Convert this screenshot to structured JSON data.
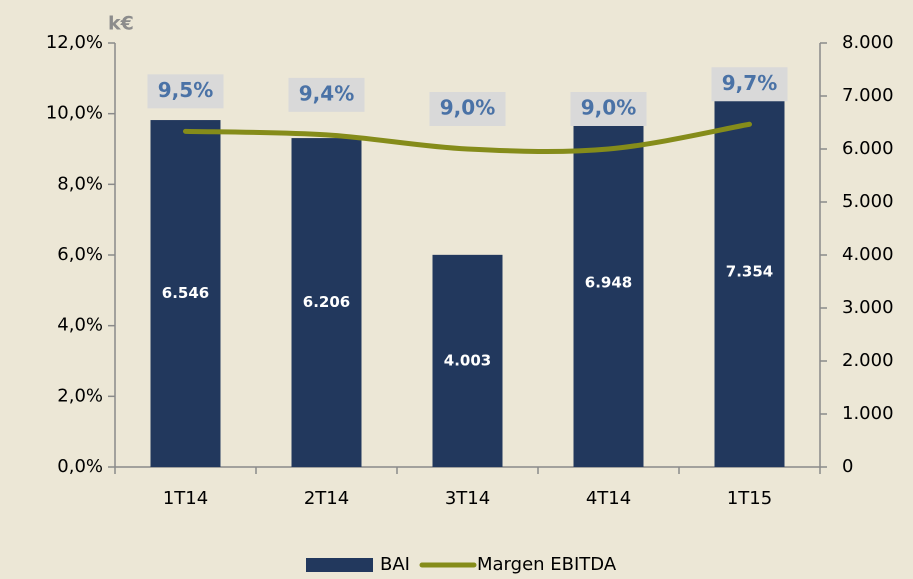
{
  "chart_data": {
    "type": "bar-line",
    "unit_label": "k€",
    "categories": [
      "1T14",
      "2T14",
      "3T14",
      "4T14",
      "1T15"
    ],
    "series": [
      {
        "name": "BAI",
        "type": "bar",
        "axis": "y2",
        "color": "#22385d",
        "values": [
          6546,
          6206,
          4003,
          6948,
          7354
        ],
        "value_labels": [
          "6.546",
          "6.206",
          "4.003",
          "6.948",
          "7.354"
        ]
      },
      {
        "name": "Margen EBITDA",
        "type": "line",
        "axis": "y",
        "color": "#858c1a",
        "values": [
          9.5,
          9.4,
          9.0,
          9.0,
          9.7
        ],
        "value_labels": [
          "9,5%",
          "9,4%",
          "9,0%",
          "9,0%",
          "9,7%"
        ]
      }
    ],
    "ylim": [
      0,
      12
    ],
    "yticks": [
      {
        "value": 0,
        "label": "0,0%"
      },
      {
        "value": 2,
        "label": "2,0%"
      },
      {
        "value": 4,
        "label": "4,0%"
      },
      {
        "value": 6,
        "label": "6,0%"
      },
      {
        "value": 8,
        "label": "8,0%"
      },
      {
        "value": 10,
        "label": "10,0%"
      },
      {
        "value": 12,
        "label": "12,0%"
      }
    ],
    "y2lim": [
      0,
      8000
    ],
    "y2ticks": [
      0,
      {
        "value": 1000,
        "label": "1.000"
      },
      {
        "value": 2000,
        "label": "2.000"
      },
      {
        "value": 3000,
        "label": "3.000"
      },
      {
        "value": 4000,
        "label": "4.000"
      },
      {
        "value": 5000,
        "label": "5.000"
      },
      {
        "value": 6000,
        "label": "6.000"
      },
      {
        "value": 7000,
        "label": "7.000"
      },
      {
        "value": 8000,
        "label": "8.000"
      }
    ],
    "legend": "bottom"
  }
}
